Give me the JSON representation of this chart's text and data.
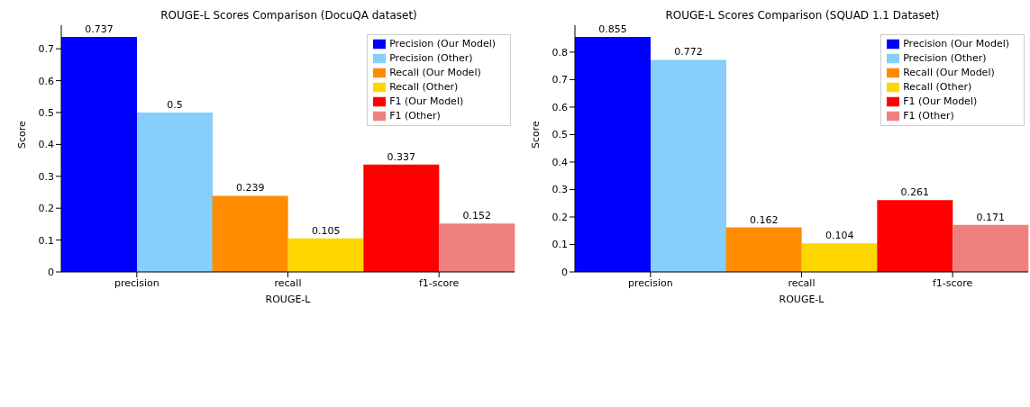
{
  "chart_data": [
    {
      "type": "bar",
      "title": "ROUGE-L Scores Comparison (DocuQA dataset)",
      "xlabel": "ROUGE-L",
      "ylabel": "Score",
      "categories": [
        "precision",
        "recall",
        "f1-score"
      ],
      "series": [
        {
          "name": "Precision (Our Model)",
          "color": "#0000ff",
          "values": [
            0.737,
            null,
            null
          ]
        },
        {
          "name": "Precision (Other)",
          "color": "#87cefa",
          "values": [
            0.5,
            null,
            null
          ]
        },
        {
          "name": "Recall (Our Model)",
          "color": "#ff8c00",
          "values": [
            null,
            0.239,
            null
          ]
        },
        {
          "name": "Recall (Other)",
          "color": "#ffd700",
          "values": [
            null,
            0.105,
            null
          ]
        },
        {
          "name": "F1 (Our Model)",
          "color": "#ff0000",
          "values": [
            null,
            null,
            0.337
          ]
        },
        {
          "name": "F1 (Other)",
          "color": "#f08080",
          "values": [
            null,
            null,
            0.152
          ]
        }
      ],
      "ylim": [
        0,
        0.774
      ],
      "yticks": [
        0,
        0.1,
        0.2,
        0.3,
        0.4,
        0.5,
        0.6,
        0.7
      ],
      "data_labels": true,
      "legend": "top right"
    },
    {
      "type": "bar",
      "title": "ROUGE-L Scores Comparison (SQUAD 1.1 Dataset)",
      "xlabel": "ROUGE-L",
      "ylabel": "Score",
      "categories": [
        "precision",
        "recall",
        "f1-score"
      ],
      "series": [
        {
          "name": "Precision (Our Model)",
          "color": "#0000ff",
          "values": [
            0.855,
            null,
            null
          ]
        },
        {
          "name": "Precision (Other)",
          "color": "#87cefa",
          "values": [
            0.772,
            null,
            null
          ]
        },
        {
          "name": "Recall (Our Model)",
          "color": "#ff8c00",
          "values": [
            null,
            0.162,
            null
          ]
        },
        {
          "name": "Recall (Other)",
          "color": "#ffd700",
          "values": [
            null,
            0.104,
            null
          ]
        },
        {
          "name": "F1 (Our Model)",
          "color": "#ff0000",
          "values": [
            null,
            null,
            0.261
          ]
        },
        {
          "name": "F1 (Other)",
          "color": "#f08080",
          "values": [
            null,
            null,
            0.171
          ]
        }
      ],
      "ylim": [
        0,
        0.898
      ],
      "yticks": [
        0,
        0.1,
        0.2,
        0.3,
        0.4,
        0.5,
        0.6,
        0.7,
        0.8
      ],
      "data_labels": true,
      "legend": "top right"
    }
  ]
}
